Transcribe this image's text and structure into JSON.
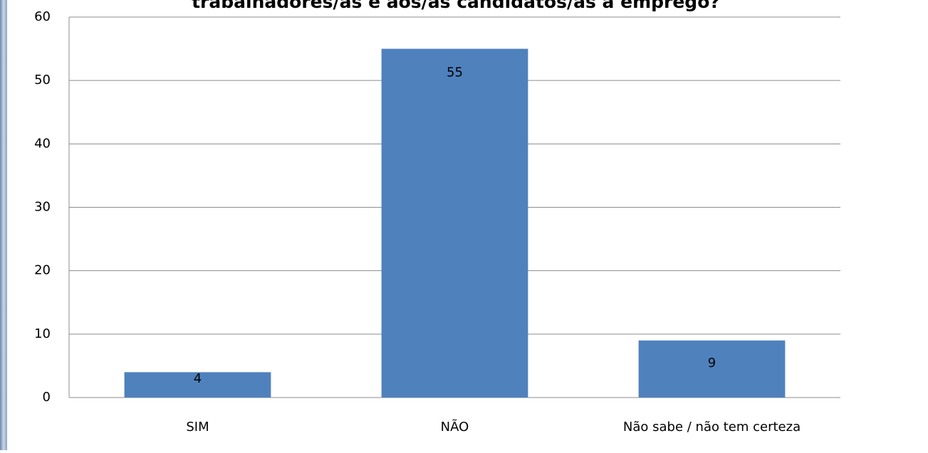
{
  "chart_data": {
    "type": "bar",
    "title": "trabalhadores/as e aos/as candidatos/as a emprego?",
    "categories": [
      "SIM",
      "NÃO",
      "Não sabe / não tem certeza"
    ],
    "values": [
      4,
      55,
      9
    ],
    "color": "#4f81bd",
    "ylim": [
      0,
      60
    ],
    "yticks": [
      0,
      10,
      20,
      30,
      40,
      50,
      60
    ],
    "grid": true
  }
}
